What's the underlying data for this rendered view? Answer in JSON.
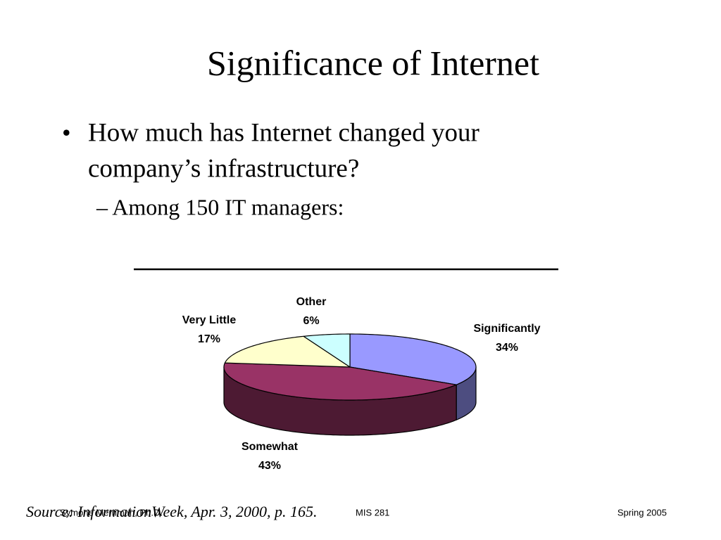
{
  "slide": {
    "title": "Significance of Internet",
    "bullet": "How much has Internet changed your company’s infrastructure?",
    "bullet_lines": [
      "How much has Internet changed your",
      "company’s infrastructure?"
    ],
    "sub_bullet": "– Among 150 IT managers:",
    "source": "Source: InformationWeek, Apr. 3, 2000, p. 165.",
    "footer": {
      "left": "Symone Merriman, Ph.D.",
      "center": "MIS 281",
      "right": "Spring 2005"
    }
  },
  "chart_data": {
    "type": "pie",
    "categories": [
      "Significantly",
      "Somewhat",
      "Very Little",
      "Other"
    ],
    "values": [
      34,
      43,
      17,
      6
    ],
    "value_labels": [
      "34%",
      "43%",
      "17%",
      "6%"
    ],
    "colors": [
      "#9999ff",
      "#993366",
      "#ffffcc",
      "#ccffff"
    ],
    "side_colors": [
      "#4d4d80",
      "#4d1a33",
      "#80806a",
      "#6a8080"
    ]
  }
}
